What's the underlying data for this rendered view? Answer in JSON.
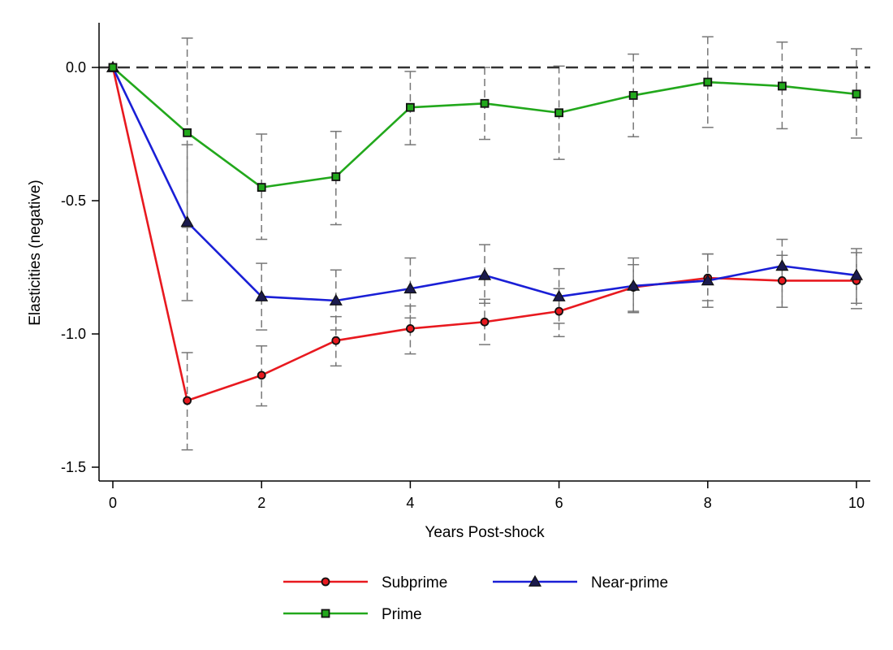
{
  "chart_data": {
    "type": "line",
    "xlabel": "Years Post-shock",
    "ylabel": "Elasticities (negative)",
    "xlim": [
      0,
      10
    ],
    "ylim": [
      -1.5,
      0.15
    ],
    "x_ticks": [
      0,
      2,
      4,
      6,
      8,
      10
    ],
    "y_ticks": [
      0.0,
      -0.5,
      -1.0,
      -1.5
    ],
    "x_tick_labels": [
      "0",
      "2",
      "4",
      "6",
      "8",
      "10"
    ],
    "y_tick_labels": [
      "0.0",
      "-0.5",
      "-1.0",
      "-1.5"
    ],
    "reference_line": {
      "y": 0,
      "style": "dashed"
    },
    "grid": false,
    "legend_position": "bottom",
    "x": [
      0,
      1,
      2,
      3,
      4,
      5,
      6,
      7,
      8,
      9,
      10
    ],
    "series": [
      {
        "name": "Subprime",
        "color": "#e8191f",
        "marker": "circle",
        "values": [
          0.0,
          -1.25,
          -1.155,
          -1.025,
          -0.98,
          -0.955,
          -0.915,
          -0.825,
          -0.79,
          -0.8,
          -0.8
        ],
        "ci_lower": [
          0.0,
          -1.435,
          -1.27,
          -1.12,
          -1.075,
          -1.04,
          -1.01,
          -0.92,
          -0.875,
          -0.9,
          -0.905
        ],
        "ci_upper": [
          0.0,
          -1.07,
          -1.045,
          -0.935,
          -0.895,
          -0.87,
          -0.83,
          -0.74,
          -0.7,
          -0.705,
          -0.695
        ]
      },
      {
        "name": "Near-prime",
        "color": "#1a1fd6",
        "marker": "triangle",
        "values": [
          0.0,
          -0.58,
          -0.86,
          -0.875,
          -0.83,
          -0.78,
          -0.86,
          -0.82,
          -0.8,
          -0.745,
          -0.78
        ],
        "ci_lower": [
          0.0,
          -0.875,
          -0.985,
          -0.985,
          -0.94,
          -0.885,
          -0.96,
          -0.915,
          -0.9,
          -0.9,
          -0.885
        ],
        "ci_upper": [
          0.0,
          -0.29,
          -0.735,
          -0.76,
          -0.715,
          -0.665,
          -0.755,
          -0.715,
          -0.7,
          -0.645,
          -0.68
        ]
      },
      {
        "name": "Prime",
        "color": "#22a81c",
        "marker": "square",
        "values": [
          0.0,
          -0.245,
          -0.45,
          -0.41,
          -0.15,
          -0.135,
          -0.17,
          -0.105,
          -0.055,
          -0.07,
          -0.1
        ],
        "ci_lower": [
          0.0,
          -0.6,
          -0.645,
          -0.59,
          -0.29,
          -0.27,
          -0.345,
          -0.26,
          -0.225,
          -0.23,
          -0.265
        ],
        "ci_upper": [
          0.0,
          0.11,
          -0.25,
          -0.24,
          -0.015,
          0.0,
          0.005,
          0.05,
          0.115,
          0.095,
          0.07
        ]
      }
    ]
  }
}
